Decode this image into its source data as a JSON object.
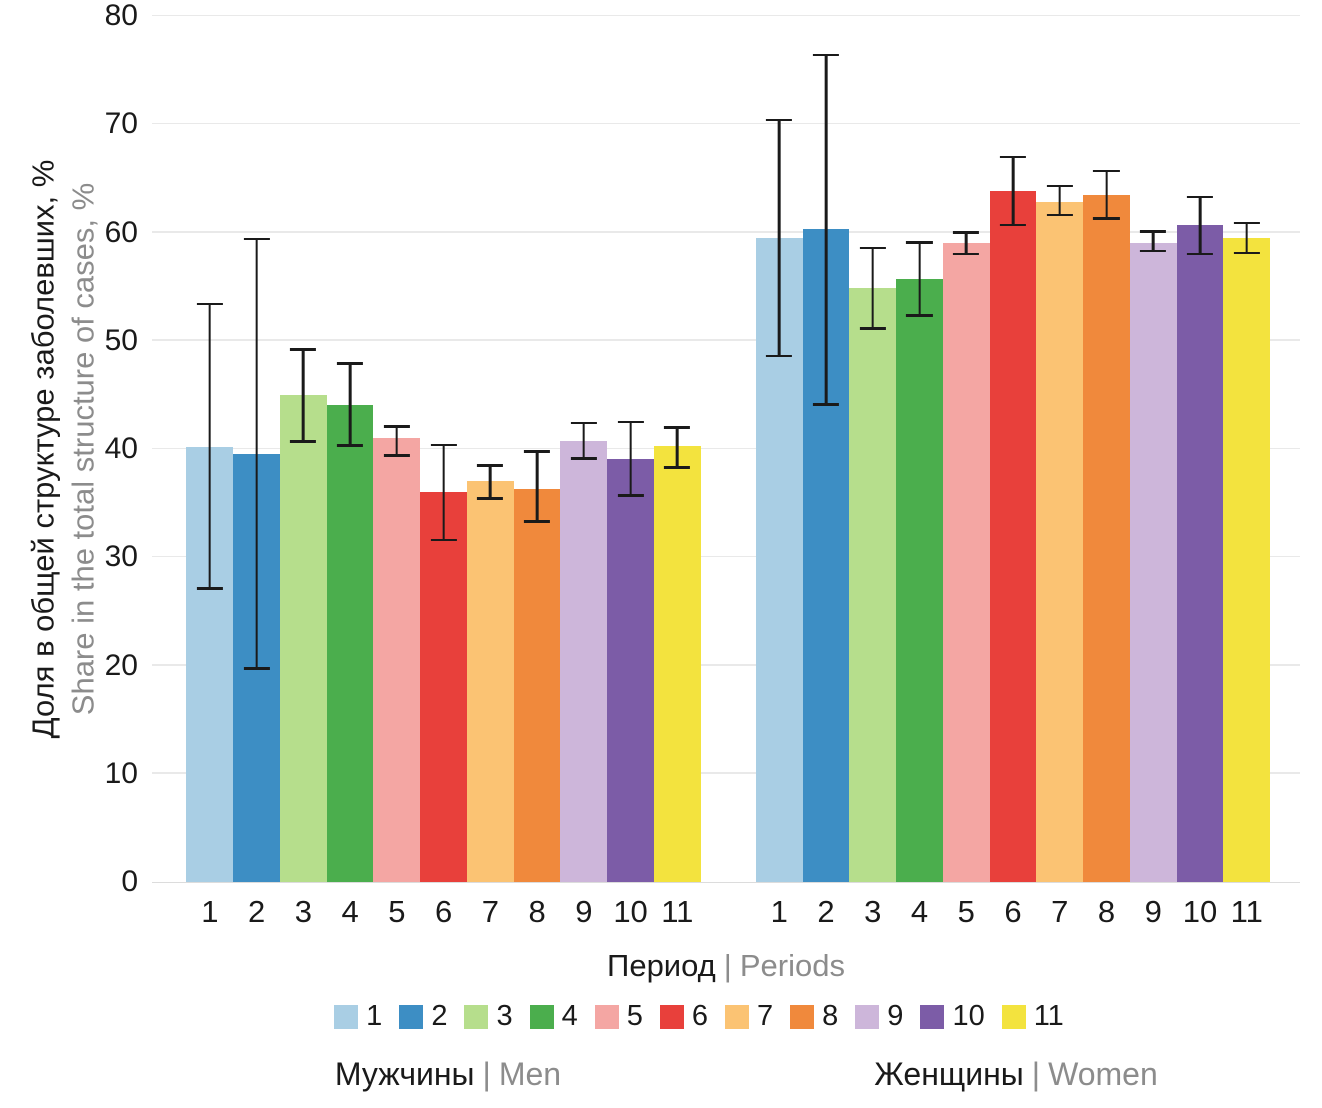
{
  "axis": {
    "y_title_ru": "Доля в общей структуре заболевших, %",
    "y_title_en": "Share in the total structure of cases, %",
    "x_title_ru": "Период",
    "sep": "|",
    "x_title_en": "Periods"
  },
  "groups": [
    {
      "label_ru": "Мужчины",
      "sep": "|",
      "label_en": "Men"
    },
    {
      "label_ru": "Женщины",
      "sep": "|",
      "label_en": "Women"
    }
  ],
  "chart_data": {
    "type": "bar",
    "title": "",
    "xlabel": "Период | Periods",
    "ylabel": "Доля в общей структуре заболевших, % / Share in the total structure of cases, %",
    "ylim": [
      0,
      80
    ],
    "yticks": [
      0,
      10,
      20,
      30,
      40,
      50,
      60,
      70,
      80
    ],
    "grid": "horizontal",
    "legend_position": "bottom",
    "categories": [
      "1",
      "2",
      "3",
      "4",
      "5",
      "6",
      "7",
      "8",
      "9",
      "10",
      "11"
    ],
    "legend": [
      "1",
      "2",
      "3",
      "4",
      "5",
      "6",
      "7",
      "8",
      "9",
      "10",
      "11"
    ],
    "palette": [
      "#A9CEE4",
      "#3D8EC4",
      "#B6DE8C",
      "#4BAE4D",
      "#F4A6A3",
      "#E8403B",
      "#FBC373",
      "#F0893C",
      "#CDB6DA",
      "#7C5CA7",
      "#F3E33E"
    ],
    "error_bar_color": "#1a1a1a",
    "gridline_color": "#e9e9e9",
    "series": [
      {
        "name": "Мужчины | Men",
        "values": [
          40.2,
          39.5,
          45.0,
          44.1,
          41.0,
          36.0,
          37.0,
          36.3,
          40.7,
          39.1,
          40.3
        ],
        "err_low": [
          27.0,
          19.6,
          40.6,
          40.2,
          39.3,
          31.5,
          35.3,
          33.2,
          39.0,
          35.6,
          38.2
        ],
        "err_high": [
          53.5,
          59.5,
          49.3,
          48.0,
          42.2,
          40.5,
          38.6,
          39.9,
          42.5,
          42.6,
          42.1
        ]
      },
      {
        "name": "Женщины | Women",
        "values": [
          59.5,
          60.3,
          54.9,
          55.7,
          59.0,
          63.8,
          62.8,
          63.5,
          59.0,
          60.7,
          59.5
        ],
        "err_low": [
          48.5,
          44.0,
          51.0,
          52.2,
          57.9,
          60.6,
          61.5,
          61.2,
          58.2,
          57.9,
          58.0
        ],
        "err_high": [
          70.5,
          76.5,
          58.7,
          59.2,
          60.1,
          67.1,
          64.4,
          65.8,
          60.2,
          63.4,
          61.0
        ]
      }
    ],
    "group_offsets_pct": [
      3.0,
      52.6
    ],
    "group_width_pct": 44.8
  }
}
